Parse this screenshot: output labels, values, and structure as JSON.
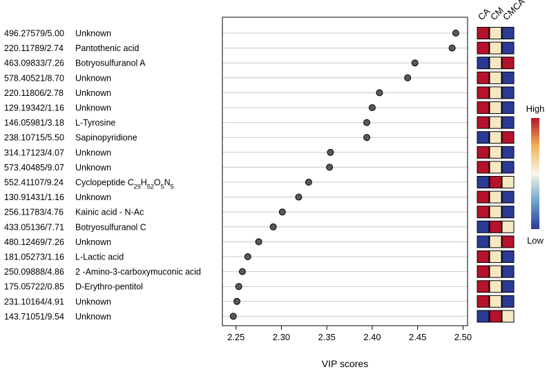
{
  "chart_data": {
    "type": "scatter",
    "xlabel": "VIP scores",
    "xlim": [
      2.235,
      2.505
    ],
    "xticks": [
      "2.25",
      "2.30",
      "2.35",
      "2.40",
      "2.45",
      "2.50"
    ],
    "xtick_values": [
      2.25,
      2.3,
      2.35,
      2.4,
      2.45,
      2.5
    ],
    "grid": "horizontal",
    "heatmap_columns": [
      "CA",
      "CM",
      "CMCA"
    ],
    "legend": {
      "high": "High",
      "low": "Low",
      "position": "right"
    },
    "level_colors": {
      "high": "#b5122b",
      "mid": "#f6e9c2",
      "low": "#2b3a95"
    },
    "features": [
      {
        "id": "496.27579/5.00",
        "name": "Unknown",
        "vip": 2.492,
        "levels": [
          "high",
          "mid",
          "low"
        ]
      },
      {
        "id": "220.11789/2.74",
        "name": "Pantothenic acid",
        "vip": 2.488,
        "levels": [
          "high",
          "mid",
          "low"
        ]
      },
      {
        "id": "463.09833/7.26",
        "name": "Botryosulfuranol A",
        "vip": 2.447,
        "levels": [
          "low",
          "mid",
          "high"
        ]
      },
      {
        "id": "578.40521/8.70",
        "name": "Unknown",
        "vip": 2.439,
        "levels": [
          "high",
          "mid",
          "low"
        ]
      },
      {
        "id": "220.11806/2.78",
        "name": "Unknown",
        "vip": 2.408,
        "levels": [
          "high",
          "mid",
          "low"
        ]
      },
      {
        "id": "129.19342/1.16",
        "name": "Unknown",
        "vip": 2.4,
        "levels": [
          "high",
          "mid",
          "low"
        ]
      },
      {
        "id": "146.05981/3.18",
        "name": "L-Tyrosine",
        "vip": 2.394,
        "levels": [
          "high",
          "mid",
          "low"
        ]
      },
      {
        "id": "238.10715/5.50",
        "name": "Sapinopyridione",
        "vip": 2.394,
        "levels": [
          "low",
          "mid",
          "high"
        ]
      },
      {
        "id": "314.17123/4.07",
        "name": "Unknown",
        "vip": 2.354,
        "levels": [
          "high",
          "mid",
          "low"
        ]
      },
      {
        "id": "573.40485/9.07",
        "name": "Unknown",
        "vip": 2.353,
        "levels": [
          "high",
          "mid",
          "low"
        ]
      },
      {
        "id": "552.41107/9.24",
        "name": "Cyclopeptide C29H52O5N5",
        "vip": 2.33,
        "levels": [
          "low",
          "high",
          "mid"
        ]
      },
      {
        "id": "130.91431/1.16",
        "name": "Unknown",
        "vip": 2.319,
        "levels": [
          "high",
          "mid",
          "low"
        ]
      },
      {
        "id": "256.11783/4.76",
        "name": "Kainic acid - N-Ac",
        "vip": 2.301,
        "levels": [
          "high",
          "mid",
          "low"
        ]
      },
      {
        "id": "433.05136/7.71",
        "name": "Botryosulfuranol C",
        "vip": 2.291,
        "levels": [
          "low",
          "high",
          "mid"
        ]
      },
      {
        "id": "480.12469/7.26",
        "name": "Unknown",
        "vip": 2.275,
        "levels": [
          "low",
          "mid",
          "high"
        ]
      },
      {
        "id": "181.05273/1.16",
        "name": "L-Lactic acid",
        "vip": 2.263,
        "levels": [
          "high",
          "mid",
          "low"
        ]
      },
      {
        "id": "250.09888/4.86",
        "name": "2 -Amino-3-carboxymuconic acid",
        "vip": 2.257,
        "levels": [
          "high",
          "mid",
          "low"
        ]
      },
      {
        "id": "175.05722/0.85",
        "name": "D-Erythro-pentitol",
        "vip": 2.253,
        "levels": [
          "high",
          "mid",
          "low"
        ]
      },
      {
        "id": "231.10164/4.91",
        "name": "Unknown",
        "vip": 2.251,
        "levels": [
          "high",
          "mid",
          "low"
        ]
      },
      {
        "id": "143.71051/9.54",
        "name": "Unknown",
        "vip": 2.247,
        "levels": [
          "low",
          "high",
          "mid"
        ]
      }
    ]
  }
}
